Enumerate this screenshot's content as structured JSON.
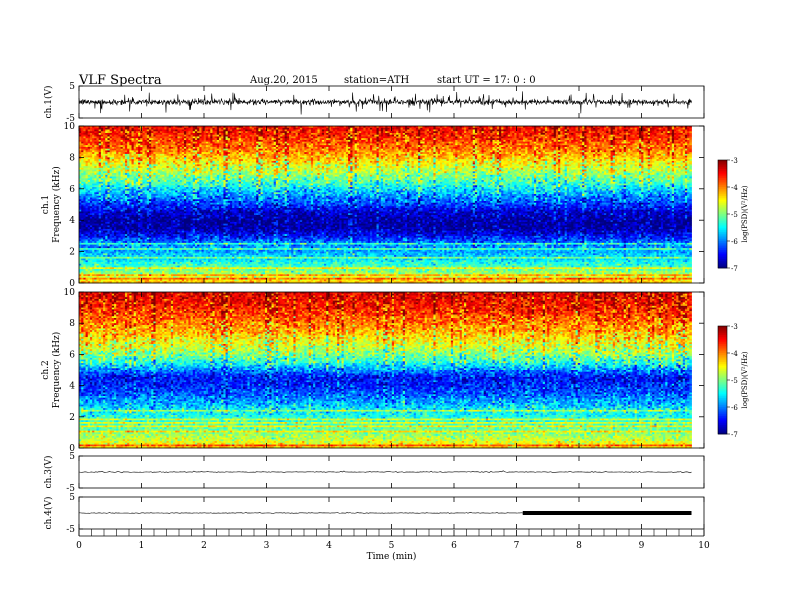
{
  "header": {
    "title": "VLF  Spectra",
    "date": "Aug.20, 2015",
    "station": "station=ATH",
    "start": "start  UT  =    17: 0   : 0"
  },
  "chart_data": [
    {
      "type": "line",
      "panel": "ch1-waveform",
      "ylabel": "ch.1(V)",
      "ylim": [
        -5,
        5
      ],
      "yticks": [
        "5",
        "-5"
      ],
      "xlim": [
        0,
        10
      ],
      "data_extent_min": 9.8,
      "signal": "continuous noise, baseline near 0 V, spikes up to about ±3 V",
      "color": "#000000"
    },
    {
      "type": "heatmap",
      "panel": "ch1-spectrogram",
      "ylabel": "ch.1\nFrequency (kHz)",
      "ylim": [
        0,
        10
      ],
      "yticks": [
        "0",
        "2",
        "4",
        "6",
        "8",
        "10"
      ],
      "xlim": [
        0,
        10
      ],
      "data_extent_min": 9.8,
      "profile_freq_khz": [
        0.0,
        0.5,
        1.0,
        1.5,
        2.0,
        2.5,
        3.0,
        3.5,
        4.0,
        4.5,
        5.0,
        5.5,
        6.0,
        6.5,
        7.0,
        7.5,
        8.0,
        8.5,
        9.0,
        9.5,
        10.0
      ],
      "profile_log_psd": [
        -4.2,
        -4.8,
        -5.2,
        -5.6,
        -5.8,
        -6.0,
        -6.5,
        -6.9,
        -6.9,
        -6.7,
        -6.3,
        -6.0,
        -5.6,
        -5.2,
        -4.9,
        -4.6,
        -4.3,
        -4.0,
        -3.8,
        -3.6,
        -3.5
      ],
      "colorbar": {
        "label": "log(PSD)(V²/Hz)",
        "range": [
          -7,
          -3
        ],
        "ticks": [
          "-3",
          "-4",
          "-5",
          "-6",
          "-7"
        ]
      }
    },
    {
      "type": "heatmap",
      "panel": "ch2-spectrogram",
      "ylabel": "ch.2\nFrequency (kHz)",
      "ylim": [
        0,
        10
      ],
      "yticks": [
        "0",
        "2",
        "4",
        "6",
        "8",
        "10"
      ],
      "xlim": [
        0,
        10
      ],
      "data_extent_min": 9.8,
      "profile_freq_khz": [
        0.0,
        0.5,
        1.0,
        1.5,
        2.0,
        2.5,
        3.0,
        3.5,
        4.0,
        4.5,
        5.0,
        5.5,
        6.0,
        6.5,
        7.0,
        7.5,
        8.0,
        8.5,
        9.0,
        9.5,
        10.0
      ],
      "profile_log_psd": [
        -4.3,
        -4.7,
        -5.0,
        -5.2,
        -5.4,
        -5.6,
        -5.9,
        -6.2,
        -6.4,
        -6.5,
        -6.0,
        -5.4,
        -5.0,
        -4.7,
        -4.5,
        -4.2,
        -4.0,
        -3.8,
        -3.6,
        -3.5,
        -3.4
      ],
      "colorbar": {
        "label": "log(PSD)(V²/Hz)",
        "range": [
          -7,
          -3
        ],
        "ticks": [
          "-3",
          "-4",
          "-5",
          "-6",
          "-7"
        ]
      }
    },
    {
      "type": "line",
      "panel": "ch3-waveform",
      "ylabel": "ch.3(V)",
      "ylim": [
        -5,
        5
      ],
      "yticks": [
        "5",
        "-5"
      ],
      "xlim": [
        0,
        10
      ],
      "data_extent_min": 9.8,
      "signal": "flat near 0 V with small noise",
      "color": "#000000"
    },
    {
      "type": "line",
      "panel": "ch4-waveform",
      "ylabel": "ch.4(V)",
      "ylim": [
        -5,
        5
      ],
      "yticks": [
        "5",
        "-5"
      ],
      "xlim": [
        0,
        10
      ],
      "data_extent_min": 9.8,
      "signal": "flat near 0 V; thick trace from 7.1 to 9.8 min",
      "thick_from_min": 7.1,
      "thick_to_min": 9.8,
      "color": "#000000"
    }
  ],
  "xaxis": {
    "label": "Time  (min)",
    "ticks": [
      "0",
      "1",
      "2",
      "3",
      "4",
      "5",
      "6",
      "7",
      "8",
      "9",
      "10"
    ]
  },
  "colors": {
    "low": "#00007a",
    "mid": "#00e060",
    "high": "#ff2000"
  }
}
